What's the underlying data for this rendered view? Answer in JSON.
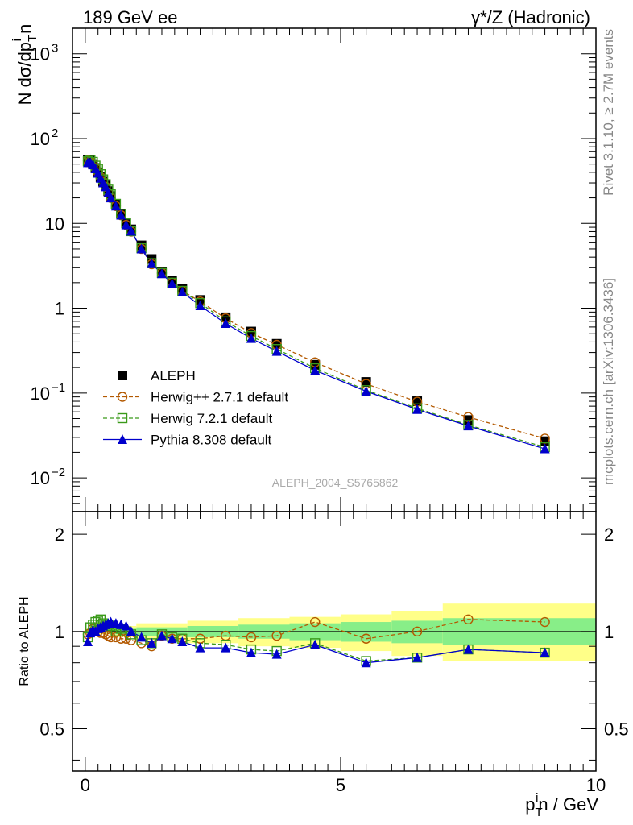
{
  "header": {
    "left": "189 GeV ee",
    "right": "γ*/Z (Hadronic)"
  },
  "side_labels": {
    "rivet": "Rivet 3.1.10, ≥ 2.7M events",
    "mcplots": "mcplots.cern.ch [arXiv:1306.3436]"
  },
  "watermark": "ALEPH_2004_S5765862",
  "top_ylabel": "N dσ/dp_T^i n",
  "ratio_ylabel": "Ratio to ALEPH",
  "xlabel": "p_T^i n / GeV",
  "top_ticks": [
    {
      "v": 0.01,
      "label": "10",
      "sup": "−2"
    },
    {
      "v": 0.1,
      "label": "10",
      "sup": "−1"
    },
    {
      "v": 1,
      "label": "1",
      "sup": ""
    },
    {
      "v": 10,
      "label": "10",
      "sup": ""
    },
    {
      "v": 100,
      "label": "10",
      "sup": "2"
    },
    {
      "v": 1000,
      "label": "10",
      "sup": "3"
    }
  ],
  "ratio_ticks": [
    {
      "v": 0.5,
      "label": "0.5"
    },
    {
      "v": 1,
      "label": "1"
    },
    {
      "v": 2,
      "label": "2"
    }
  ],
  "x_ticks": [
    {
      "v": 0,
      "label": "0"
    },
    {
      "v": 5,
      "label": "5"
    },
    {
      "v": 10,
      "label": "10"
    }
  ],
  "legend": [
    {
      "label": "ALEPH",
      "color": "#000000",
      "marker": "square-filled",
      "line": "none"
    },
    {
      "label": "Herwig++ 2.7.1 default",
      "color": "#b35900",
      "marker": "circle-open",
      "line": "dashed"
    },
    {
      "label": "Herwig 7.2.1 default",
      "color": "#3a9a1a",
      "marker": "square-open",
      "line": "dashed"
    },
    {
      "label": "Pythia 8.308 default",
      "color": "#0000cc",
      "marker": "triangle-filled",
      "line": "solid"
    }
  ],
  "chart_data": {
    "type": "scatter",
    "xlim": [
      -0.25,
      10
    ],
    "top_ylim": [
      0.004,
      2000
    ],
    "top_yscale": "log",
    "ratio_ylim": [
      0.37,
      2.35
    ],
    "ratio_yscale": "log",
    "x": [
      0.05,
      0.1,
      0.15,
      0.2,
      0.25,
      0.3,
      0.35,
      0.4,
      0.45,
      0.5,
      0.6,
      0.7,
      0.8,
      0.9,
      1.1,
      1.3,
      1.5,
      1.7,
      1.9,
      2.25,
      2.75,
      3.25,
      3.75,
      4.5,
      5.5,
      6.5,
      7.5,
      9.0
    ],
    "series": [
      {
        "name": "ALEPH",
        "values": [
          56,
          55,
          50,
          45,
          40,
          35,
          31,
          28,
          24,
          21,
          17,
          13,
          10,
          8.5,
          5.5,
          3.8,
          2.7,
          2.1,
          1.7,
          1.25,
          0.78,
          0.53,
          0.38,
          0.215,
          0.135,
          0.08,
          0.048,
          0.027
        ]
      },
      {
        "name": "Herwig++ 2.7.1 default",
        "values": [
          55,
          54,
          50,
          45,
          40,
          35,
          31,
          27,
          23,
          20,
          16,
          12.5,
          9.6,
          8.0,
          5.0,
          3.3,
          2.6,
          2.0,
          1.6,
          1.2,
          0.76,
          0.51,
          0.37,
          0.23,
          0.128,
          0.079,
          0.052,
          0.029
        ]
      },
      {
        "name": "Herwig 7.2.1 default",
        "values": [
          54,
          56,
          53,
          48,
          44,
          38,
          33,
          29,
          25,
          22,
          17,
          13,
          10,
          8.1,
          5.1,
          3.4,
          2.6,
          2.0,
          1.6,
          1.15,
          0.7,
          0.47,
          0.33,
          0.196,
          0.108,
          0.066,
          0.042,
          0.023
        ]
      },
      {
        "name": "Pythia 8.308 default",
        "values": [
          52,
          52,
          49,
          44,
          39,
          34,
          30,
          27,
          23,
          20,
          16,
          12.5,
          9.6,
          8.1,
          5.0,
          3.35,
          2.55,
          1.95,
          1.55,
          1.07,
          0.66,
          0.44,
          0.31,
          0.185,
          0.105,
          0.064,
          0.041,
          0.022
        ]
      }
    ],
    "ratio_series": [
      {
        "name": "Herwig++ 2.7.1 default",
        "values": [
          0.98,
          0.99,
          1.02,
          1.03,
          1.0,
          0.99,
          0.99,
          0.98,
          0.97,
          0.96,
          0.96,
          0.95,
          0.95,
          0.94,
          0.92,
          0.9,
          0.97,
          0.95,
          0.95,
          0.95,
          0.97,
          0.96,
          0.97,
          1.07,
          0.95,
          1.0,
          1.09,
          1.07
        ]
      },
      {
        "name": "Herwig 7.2.1 default",
        "values": [
          0.96,
          1.03,
          1.05,
          1.07,
          1.08,
          1.09,
          1.06,
          1.05,
          1.05,
          1.04,
          1.0,
          1.02,
          1.0,
          0.98,
          0.94,
          0.92,
          0.98,
          0.96,
          0.95,
          0.92,
          0.91,
          0.88,
          0.87,
          0.92,
          0.81,
          0.83,
          0.88,
          0.86
        ]
      },
      {
        "name": "Pythia 8.308 default",
        "values": [
          0.93,
          0.99,
          1.01,
          1.0,
          1.02,
          1.03,
          1.04,
          1.05,
          1.06,
          1.07,
          1.06,
          1.05,
          1.04,
          1.0,
          0.96,
          0.92,
          0.97,
          0.95,
          0.93,
          0.89,
          0.89,
          0.86,
          0.85,
          0.91,
          0.8,
          0.83,
          0.88,
          0.86
        ]
      }
    ],
    "ratio_bands": [
      {
        "x0": 0,
        "x1": 0.5,
        "inner": [
          0.99,
          1.01
        ],
        "outer": [
          0.98,
          1.02
        ]
      },
      {
        "x0": 0.5,
        "x1": 1.0,
        "inner": [
          0.98,
          1.02
        ],
        "outer": [
          0.96,
          1.04
        ]
      },
      {
        "x0": 1.0,
        "x1": 2.0,
        "inner": [
          0.97,
          1.03
        ],
        "outer": [
          0.94,
          1.06
        ]
      },
      {
        "x0": 2.0,
        "x1": 3.0,
        "inner": [
          0.96,
          1.04
        ],
        "outer": [
          0.92,
          1.08
        ]
      },
      {
        "x0": 3.0,
        "x1": 4.0,
        "inner": [
          0.95,
          1.05
        ],
        "outer": [
          0.9,
          1.1
        ]
      },
      {
        "x0": 4.0,
        "x1": 5.0,
        "inner": [
          0.94,
          1.06
        ],
        "outer": [
          0.89,
          1.11
        ]
      },
      {
        "x0": 5.0,
        "x1": 6.0,
        "inner": [
          0.93,
          1.07
        ],
        "outer": [
          0.87,
          1.13
        ]
      },
      {
        "x0": 6.0,
        "x1": 7.0,
        "inner": [
          0.92,
          1.08
        ],
        "outer": [
          0.84,
          1.16
        ]
      },
      {
        "x0": 7.0,
        "x1": 10.0,
        "inner": [
          0.91,
          1.1
        ],
        "outer": [
          0.81,
          1.22
        ]
      }
    ],
    "band_colors": {
      "inner": "#88ee88",
      "outer": "#ffff88"
    }
  }
}
